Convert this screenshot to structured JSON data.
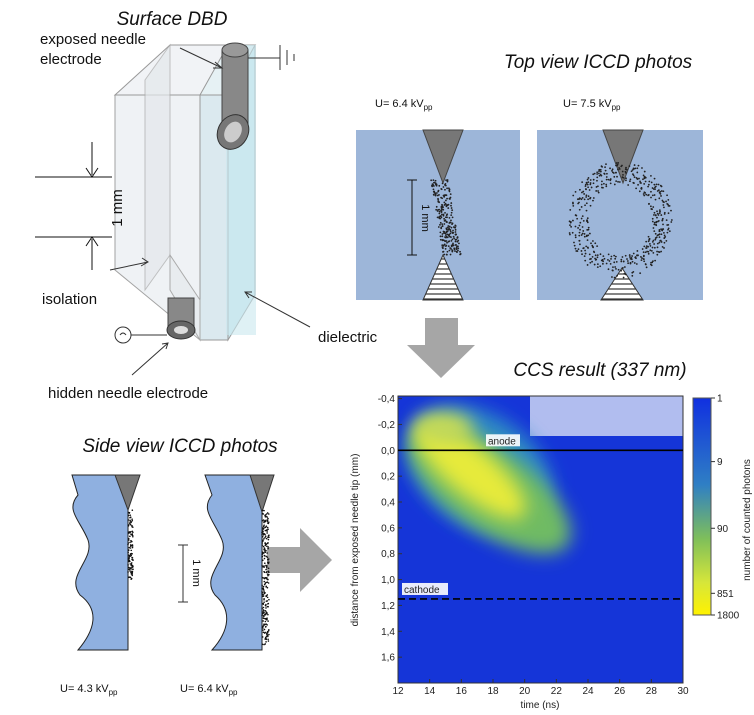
{
  "surface_dbd": {
    "title": "Surface DBD",
    "labels": {
      "exposed_1": "exposed needle",
      "exposed_2": "electrode",
      "gap": "1 mm",
      "isolation": "isolation",
      "dielectric": "dielectric",
      "hidden": "hidden needle electrode"
    }
  },
  "top_view": {
    "title": "Top view ICCD photos",
    "scale": "1 mm",
    "photos": [
      {
        "text": "U= 6.4 kV",
        "sub": "pp"
      },
      {
        "text": "U= 7.5 kV",
        "sub": "pp"
      }
    ]
  },
  "side_view": {
    "title": "Side view ICCD photos",
    "scale": "1 mm",
    "photos": [
      {
        "text": "U= 4.3 kV",
        "sub": "pp"
      },
      {
        "text": "U= 6.4 kV",
        "sub": "pp"
      }
    ]
  },
  "chart_data": {
    "type": "heatmap",
    "title": "CCS result (337 nm)",
    "xlabel": "time (ns)",
    "ylabel": "distance from exposed needle tip (mm)",
    "xlim": [
      12,
      30
    ],
    "xticks": [
      12,
      14,
      16,
      18,
      20,
      22,
      24,
      26,
      28,
      30
    ],
    "ylim": [
      -0.42,
      1.8
    ],
    "y_inverted": true,
    "yticks": [
      {
        "value": -0.4,
        "label": "-0,4"
      },
      {
        "value": -0.2,
        "label": "-0,2"
      },
      {
        "value": 0,
        "label": "0,0"
      },
      {
        "value": 0.2,
        "label": "0,2"
      },
      {
        "value": 0.4,
        "label": "0,4"
      },
      {
        "value": 0.6,
        "label": "0,6"
      },
      {
        "value": 0.8,
        "label": "0,8"
      },
      {
        "value": 1.0,
        "label": "1,0"
      },
      {
        "value": 1.2,
        "label": "1,2"
      },
      {
        "value": 1.4,
        "label": "1,4"
      },
      {
        "value": 1.6,
        "label": "1,6"
      }
    ],
    "annotations": [
      {
        "text": "anode",
        "y": 0,
        "style": "solid"
      },
      {
        "text": "cathode",
        "y": 1.15,
        "style": "dashed"
      }
    ],
    "colorbar": {
      "label": "number of counted photons",
      "log": true,
      "clim": [
        1,
        1800
      ],
      "ticks": [
        1,
        9,
        90,
        851,
        1800
      ]
    }
  }
}
